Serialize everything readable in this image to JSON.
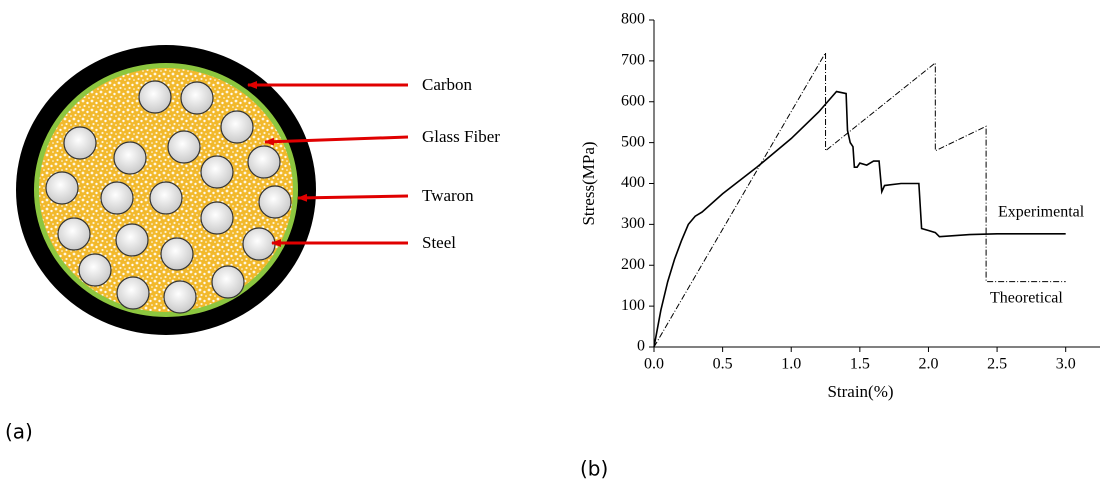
{
  "diagram": {
    "caption": "(a)",
    "labels": [
      "Carbon",
      "Glass Fiber",
      "Twaron",
      "Steel"
    ]
  },
  "chart_data": {
    "type": "line",
    "caption": "(b)",
    "xlabel": "Strain(%)",
    "ylabel": "Stress(MPa)",
    "xlim": [
      0,
      3.25
    ],
    "ylim": [
      0,
      800
    ],
    "xticks": [
      {
        "value": 0,
        "label": "0.0"
      },
      0.5,
      {
        "value": 1,
        "label": "1.0"
      },
      1.5,
      {
        "value": 2,
        "label": "2.0"
      },
      2.5,
      {
        "value": 3,
        "label": "3.0"
      }
    ],
    "yticks": [
      0,
      100,
      200,
      300,
      400,
      500,
      600,
      700,
      800
    ],
    "series": [
      {
        "name": "Experimental",
        "color": "#000000",
        "dash": "solid",
        "x": [
          0,
          0.05,
          0.1,
          0.15,
          0.2,
          0.25,
          0.3,
          0.35,
          0.5,
          0.75,
          1.0,
          1.2,
          1.33,
          1.4,
          1.41,
          1.43,
          1.45,
          1.46,
          1.48,
          1.5,
          1.55,
          1.6,
          1.64,
          1.66,
          1.68,
          1.8,
          1.93,
          1.95,
          2.0,
          2.05,
          2.08,
          2.3,
          2.5,
          3.0
        ],
        "values": [
          0,
          90,
          160,
          215,
          260,
          300,
          320,
          330,
          375,
          440,
          510,
          575,
          625,
          620,
          530,
          500,
          490,
          440,
          440,
          450,
          445,
          455,
          455,
          380,
          395,
          400,
          400,
          290,
          285,
          280,
          270,
          275,
          277,
          277
        ]
      },
      {
        "name": "Theoretical",
        "color": "#000000",
        "dash": "dashdot",
        "x": [
          0,
          1.25,
          1.25,
          2.05,
          2.05,
          2.42,
          2.42,
          3.0
        ],
        "values": [
          0,
          720,
          480,
          695,
          480,
          540,
          160,
          160
        ]
      }
    ]
  }
}
